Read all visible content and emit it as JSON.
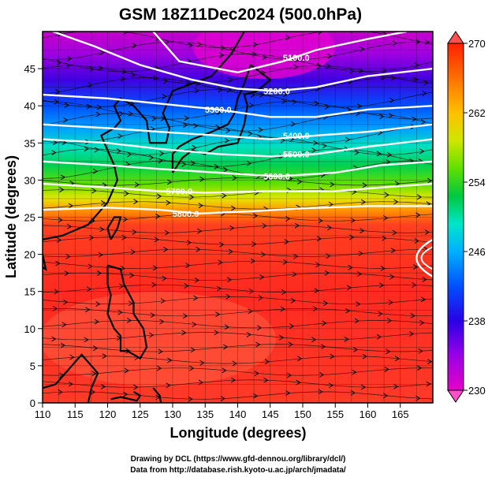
{
  "title": "GSM 18Z11Dec2024 (500.0hPa)",
  "xlabel": "Longitude (degrees)",
  "ylabel": "Latitude  (degrees)",
  "credits": [
    "Drawing by DCL (https://www.gfd-dennou.org/library/dcl/)",
    "Data from http://database.rish.kyoto-u.ac.jp/arch/jmadata/"
  ],
  "chart_data": {
    "type": "heatmap",
    "variable": "temperature (color) with geopotential height contours and streamlines",
    "x_range": [
      110,
      170
    ],
    "y_range": [
      0,
      50
    ],
    "x_ticks": [
      "110",
      "115",
      "120",
      "125",
      "130",
      "135",
      "140",
      "145",
      "150",
      "155",
      "160",
      "165"
    ],
    "y_ticks": [
      "0",
      "5",
      "10",
      "15",
      "20",
      "25",
      "30",
      "35",
      "40",
      "45"
    ],
    "colorbar": {
      "min": 230,
      "max": 270,
      "ticks": [
        "230",
        "238",
        "246",
        "254",
        "262",
        "270"
      ],
      "colors": [
        "#e600c8",
        "#9a00e6",
        "#3a00e6",
        "#0040ff",
        "#00a0ff",
        "#00e6c8",
        "#00d060",
        "#40e000",
        "#c8e600",
        "#ffc800",
        "#ff7800",
        "#ff2800"
      ]
    },
    "contours": [
      {
        "label": "5100.0",
        "lon": 149,
        "lat": 46.5
      },
      {
        "label": "5200.0",
        "lon": 146,
        "lat": 42.0
      },
      {
        "label": "5300.0",
        "lon": 137,
        "lat": 39.5
      },
      {
        "label": "5400.0",
        "lon": 149,
        "lat": 36.0
      },
      {
        "label": "5500.0",
        "lon": 149,
        "lat": 33.5
      },
      {
        "label": "5600.0",
        "lon": 146,
        "lat": 30.5
      },
      {
        "label": "5700.0",
        "lon": 131,
        "lat": 28.5
      },
      {
        "label": "5800.0",
        "lon": 132,
        "lat": 25.5
      }
    ],
    "grid": true
  }
}
